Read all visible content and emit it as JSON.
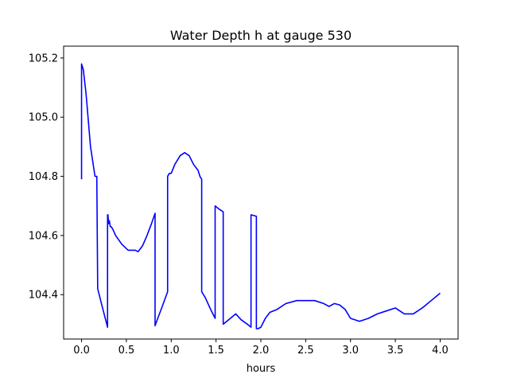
{
  "chart_data": {
    "type": "line",
    "title": "Water Depth h at gauge 530",
    "xlabel": "hours",
    "ylabel": "",
    "xlim": [
      -0.2,
      4.2
    ],
    "ylim": [
      104.25,
      105.24
    ],
    "xticks": [
      0.0,
      0.5,
      1.0,
      1.5,
      2.0,
      2.5,
      3.0,
      3.5,
      4.0
    ],
    "xtick_labels": [
      "0.0",
      "0.5",
      "1.0",
      "1.5",
      "2.0",
      "2.5",
      "3.0",
      "3.5",
      "4.0"
    ],
    "yticks": [
      104.4,
      104.6,
      104.8,
      105.0,
      105.2
    ],
    "ytick_labels": [
      "104.4",
      "104.6",
      "104.8",
      "105.0",
      "105.2"
    ],
    "grid": false,
    "legend": "none",
    "series": [
      {
        "color": "#0000ff",
        "x": [
          0.0,
          0.0,
          0.02,
          0.05,
          0.1,
          0.15,
          0.17,
          0.18,
          0.18,
          0.23,
          0.29,
          0.29,
          0.295,
          0.3,
          0.31,
          0.32,
          0.33,
          0.35,
          0.38,
          0.45,
          0.52,
          0.57,
          0.6,
          0.63,
          0.68,
          0.73,
          0.78,
          0.82,
          0.82,
          0.85,
          0.9,
          0.96,
          0.96,
          0.98,
          1.0,
          1.04,
          1.1,
          1.15,
          1.2,
          1.25,
          1.3,
          1.32,
          1.34,
          1.34,
          1.38,
          1.44,
          1.49,
          1.49,
          1.53,
          1.58,
          1.58,
          1.62,
          1.66,
          1.72,
          1.78,
          1.85,
          1.89,
          1.89,
          1.95,
          1.95,
          1.97,
          2.0,
          2.05,
          2.1,
          2.18,
          2.28,
          2.4,
          2.5,
          2.6,
          2.7,
          2.76,
          2.82,
          2.88,
          2.94,
          3.0,
          3.1,
          3.2,
          3.3,
          3.4,
          3.5,
          3.6,
          3.7,
          3.8,
          3.9,
          4.0
        ],
        "y": [
          104.79,
          105.18,
          105.16,
          105.08,
          104.9,
          104.8,
          104.8,
          104.42,
          104.42,
          104.36,
          104.29,
          104.67,
          104.67,
          104.64,
          104.65,
          104.63,
          104.63,
          104.62,
          104.6,
          104.57,
          104.55,
          104.55,
          104.55,
          104.545,
          104.565,
          104.6,
          104.64,
          104.675,
          104.295,
          104.32,
          104.36,
          104.41,
          104.8,
          104.81,
          104.81,
          104.84,
          104.87,
          104.88,
          104.87,
          104.84,
          104.82,
          104.8,
          104.79,
          104.41,
          104.39,
          104.35,
          104.32,
          104.7,
          104.69,
          104.68,
          104.3,
          104.31,
          104.32,
          104.335,
          104.315,
          104.3,
          104.29,
          104.67,
          104.665,
          104.285,
          104.285,
          104.29,
          104.32,
          104.34,
          104.35,
          104.37,
          104.38,
          104.38,
          104.38,
          104.37,
          104.36,
          104.37,
          104.365,
          104.35,
          104.32,
          104.31,
          104.32,
          104.335,
          104.345,
          104.355,
          104.335,
          104.335,
          104.355,
          104.38,
          104.405
        ]
      }
    ]
  }
}
